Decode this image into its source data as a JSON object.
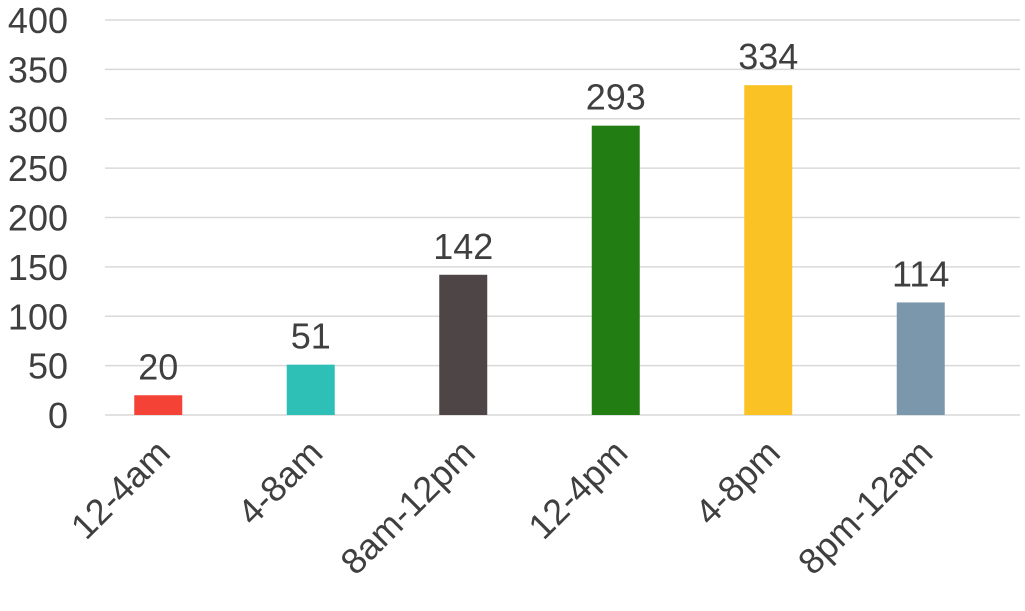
{
  "chart_data": {
    "type": "bar",
    "categories": [
      "12-4am",
      "4-8am",
      "8am-12pm",
      "12-4pm",
      "4-8pm",
      "8pm-12am"
    ],
    "values": [
      20,
      51,
      142,
      293,
      334,
      114
    ],
    "data_labels": [
      "20",
      "51",
      "142",
      "293",
      "334",
      "114"
    ],
    "bar_colors": [
      "#f44336",
      "#2ebfb6",
      "#4e4646",
      "#227d13",
      "#fbc225",
      "#7b97ac"
    ],
    "yticks": [
      0,
      50,
      100,
      150,
      200,
      250,
      300,
      350,
      400
    ],
    "ylim": [
      0,
      400
    ],
    "grid": true,
    "legend": "none"
  }
}
